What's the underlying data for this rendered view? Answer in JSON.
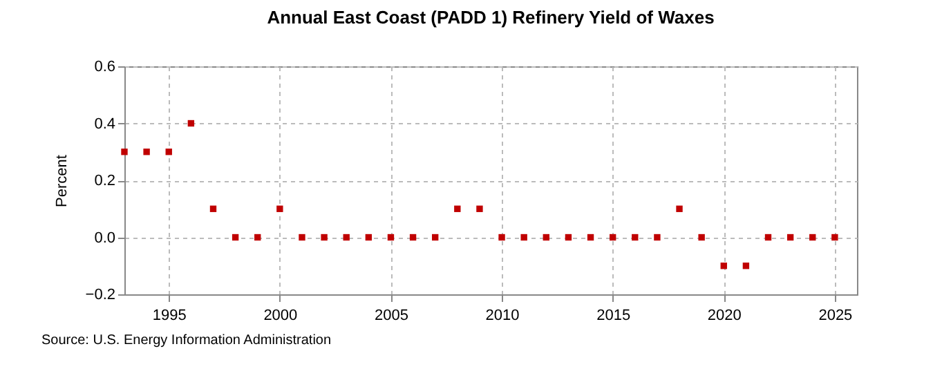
{
  "chart_data": {
    "type": "scatter",
    "title": "Annual East Coast (PADD 1) Refinery Yield of Waxes",
    "ylabel": "Percent",
    "x": [
      1993,
      1994,
      1995,
      1996,
      1997,
      1998,
      1999,
      2000,
      2001,
      2002,
      2003,
      2004,
      2005,
      2006,
      2007,
      2008,
      2009,
      2010,
      2011,
      2012,
      2013,
      2014,
      2015,
      2016,
      2017,
      2018,
      2019,
      2020,
      2021,
      2022,
      2023,
      2024,
      2025
    ],
    "series": [
      {
        "color": "#c00000",
        "values": [
          0.3,
          0.3,
          0.3,
          0.4,
          0.1,
          0,
          0,
          0.1,
          0,
          0,
          0,
          0,
          0,
          0,
          0,
          0.1,
          0.1,
          0,
          0,
          0,
          0,
          0,
          0,
          0,
          0,
          0.1,
          0,
          -0.1,
          -0.1,
          0,
          0,
          0,
          0
        ]
      }
    ],
    "xlim": [
      1993,
      2026
    ],
    "xticks": [
      1995,
      2000,
      2005,
      2010,
      2015,
      2020,
      2025
    ],
    "ylim": [
      -0.2,
      0.6
    ],
    "yticks": [
      -0.2,
      {
        "value": 0,
        "label": "0.0"
      },
      0.2,
      0.4,
      0.6
    ],
    "grid": true,
    "marker": "square",
    "annotations": [
      "Source: U.S. Energy Information Administration"
    ]
  }
}
